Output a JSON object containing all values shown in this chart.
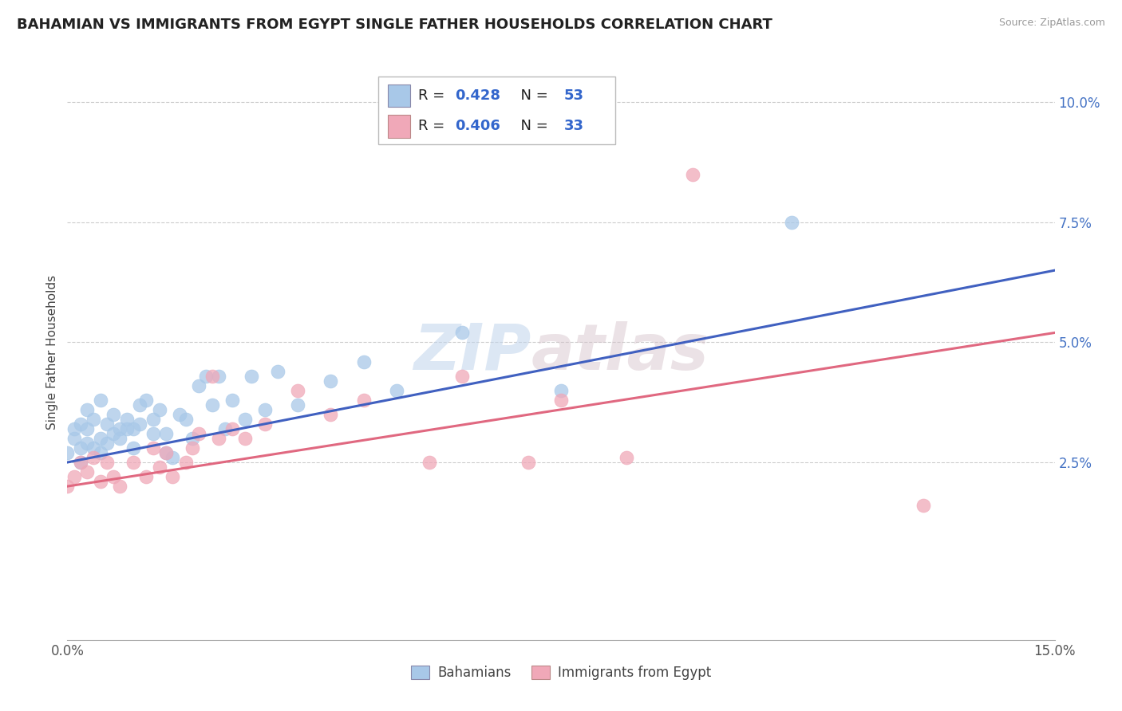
{
  "title": "BAHAMIAN VS IMMIGRANTS FROM EGYPT SINGLE FATHER HOUSEHOLDS CORRELATION CHART",
  "source": "Source: ZipAtlas.com",
  "ylabel": "Single Father Households",
  "xlim": [
    0.0,
    0.15
  ],
  "ylim": [
    -0.012,
    0.108
  ],
  "r_blue": 0.428,
  "n_blue": 53,
  "r_pink": 0.406,
  "n_pink": 33,
  "blue_color": "#A8C8E8",
  "pink_color": "#F0A8B8",
  "line_blue": "#4060C0",
  "line_pink": "#E06880",
  "blue_scatter_x": [
    0.0,
    0.001,
    0.001,
    0.002,
    0.002,
    0.002,
    0.003,
    0.003,
    0.003,
    0.004,
    0.004,
    0.005,
    0.005,
    0.005,
    0.006,
    0.006,
    0.007,
    0.007,
    0.008,
    0.008,
    0.009,
    0.009,
    0.01,
    0.01,
    0.011,
    0.011,
    0.012,
    0.013,
    0.013,
    0.014,
    0.015,
    0.015,
    0.016,
    0.017,
    0.018,
    0.019,
    0.02,
    0.021,
    0.022,
    0.023,
    0.024,
    0.025,
    0.027,
    0.028,
    0.03,
    0.032,
    0.035,
    0.04,
    0.045,
    0.05,
    0.06,
    0.075,
    0.11
  ],
  "blue_scatter_y": [
    0.027,
    0.03,
    0.032,
    0.025,
    0.033,
    0.028,
    0.032,
    0.036,
    0.029,
    0.034,
    0.028,
    0.03,
    0.027,
    0.038,
    0.029,
    0.033,
    0.031,
    0.035,
    0.032,
    0.03,
    0.032,
    0.034,
    0.028,
    0.032,
    0.033,
    0.037,
    0.038,
    0.031,
    0.034,
    0.036,
    0.027,
    0.031,
    0.026,
    0.035,
    0.034,
    0.03,
    0.041,
    0.043,
    0.037,
    0.043,
    0.032,
    0.038,
    0.034,
    0.043,
    0.036,
    0.044,
    0.037,
    0.042,
    0.046,
    0.04,
    0.052,
    0.04,
    0.075
  ],
  "pink_scatter_x": [
    0.0,
    0.001,
    0.002,
    0.003,
    0.004,
    0.005,
    0.006,
    0.007,
    0.008,
    0.01,
    0.012,
    0.013,
    0.014,
    0.015,
    0.016,
    0.018,
    0.019,
    0.02,
    0.022,
    0.023,
    0.025,
    0.027,
    0.03,
    0.035,
    0.04,
    0.045,
    0.055,
    0.06,
    0.07,
    0.075,
    0.085,
    0.095,
    0.13
  ],
  "pink_scatter_y": [
    0.02,
    0.022,
    0.025,
    0.023,
    0.026,
    0.021,
    0.025,
    0.022,
    0.02,
    0.025,
    0.022,
    0.028,
    0.024,
    0.027,
    0.022,
    0.025,
    0.028,
    0.031,
    0.043,
    0.03,
    0.032,
    0.03,
    0.033,
    0.04,
    0.035,
    0.038,
    0.025,
    0.043,
    0.025,
    0.038,
    0.026,
    0.085,
    0.016
  ],
  "blue_line_x0": 0.0,
  "blue_line_y0": 0.025,
  "blue_line_x1": 0.15,
  "blue_line_y1": 0.065,
  "pink_line_x0": 0.0,
  "pink_line_y0": 0.02,
  "pink_line_x1": 0.15,
  "pink_line_y1": 0.052
}
